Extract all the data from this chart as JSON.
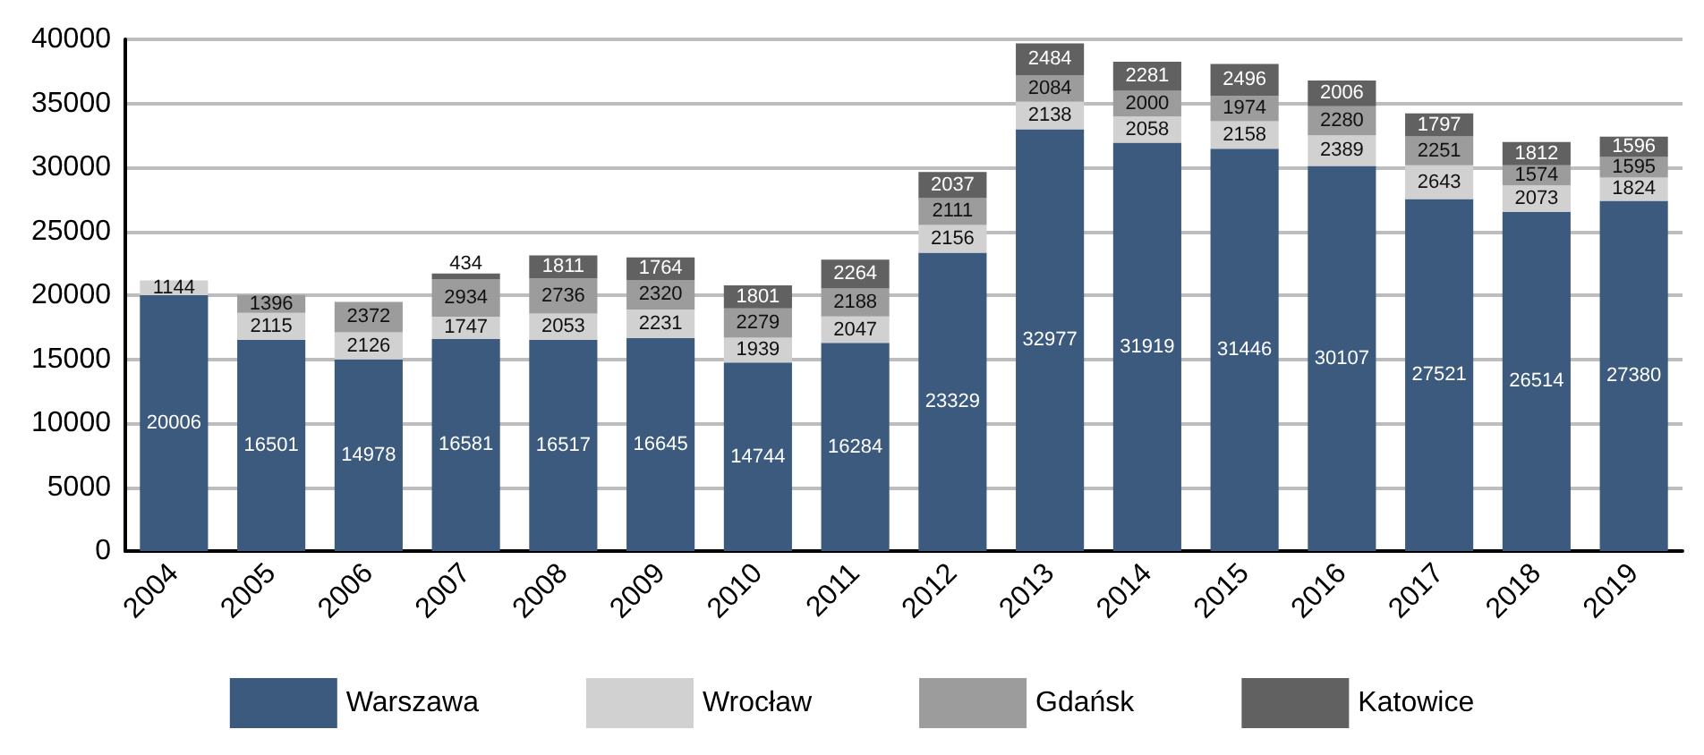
{
  "chart_data": {
    "type": "bar",
    "stacked": true,
    "categories": [
      "2004",
      "2005",
      "2006",
      "2007",
      "2008",
      "2009",
      "2010",
      "2011",
      "2012",
      "2013",
      "2014",
      "2015",
      "2016",
      "2017",
      "2018",
      "2019"
    ],
    "series": [
      {
        "name": "Warszawa",
        "color": "#3b5a7e",
        "values": [
          20006,
          16501,
          14978,
          16581,
          16517,
          16645,
          14744,
          16284,
          23329,
          32977,
          31919,
          31446,
          30107,
          27521,
          26514,
          27380
        ]
      },
      {
        "name": "Wrocław",
        "color": "#d0d1d0",
        "values": [
          1144,
          2115,
          2126,
          1747,
          2053,
          2231,
          1939,
          2047,
          2156,
          2138,
          2058,
          2158,
          2389,
          2643,
          2073,
          1824
        ]
      },
      {
        "name": "Gdańsk",
        "color": "#9c9c9c",
        "values": [
          null,
          1396,
          2372,
          2934,
          2736,
          2320,
          2279,
          2188,
          2111,
          2084,
          2000,
          1974,
          2280,
          2251,
          1574,
          1595
        ]
      },
      {
        "name": "Katowice",
        "color": "#616161",
        "values": [
          null,
          null,
          null,
          434,
          1811,
          1764,
          1801,
          2264,
          2037,
          2484,
          2281,
          2496,
          2006,
          1797,
          1812,
          1596
        ]
      }
    ],
    "ylim": [
      0,
      40000
    ],
    "yticks": [
      0,
      5000,
      10000,
      15000,
      20000,
      25000,
      30000,
      35000,
      40000
    ],
    "grid": "y",
    "legend": "bottom",
    "data_labels": true
  }
}
